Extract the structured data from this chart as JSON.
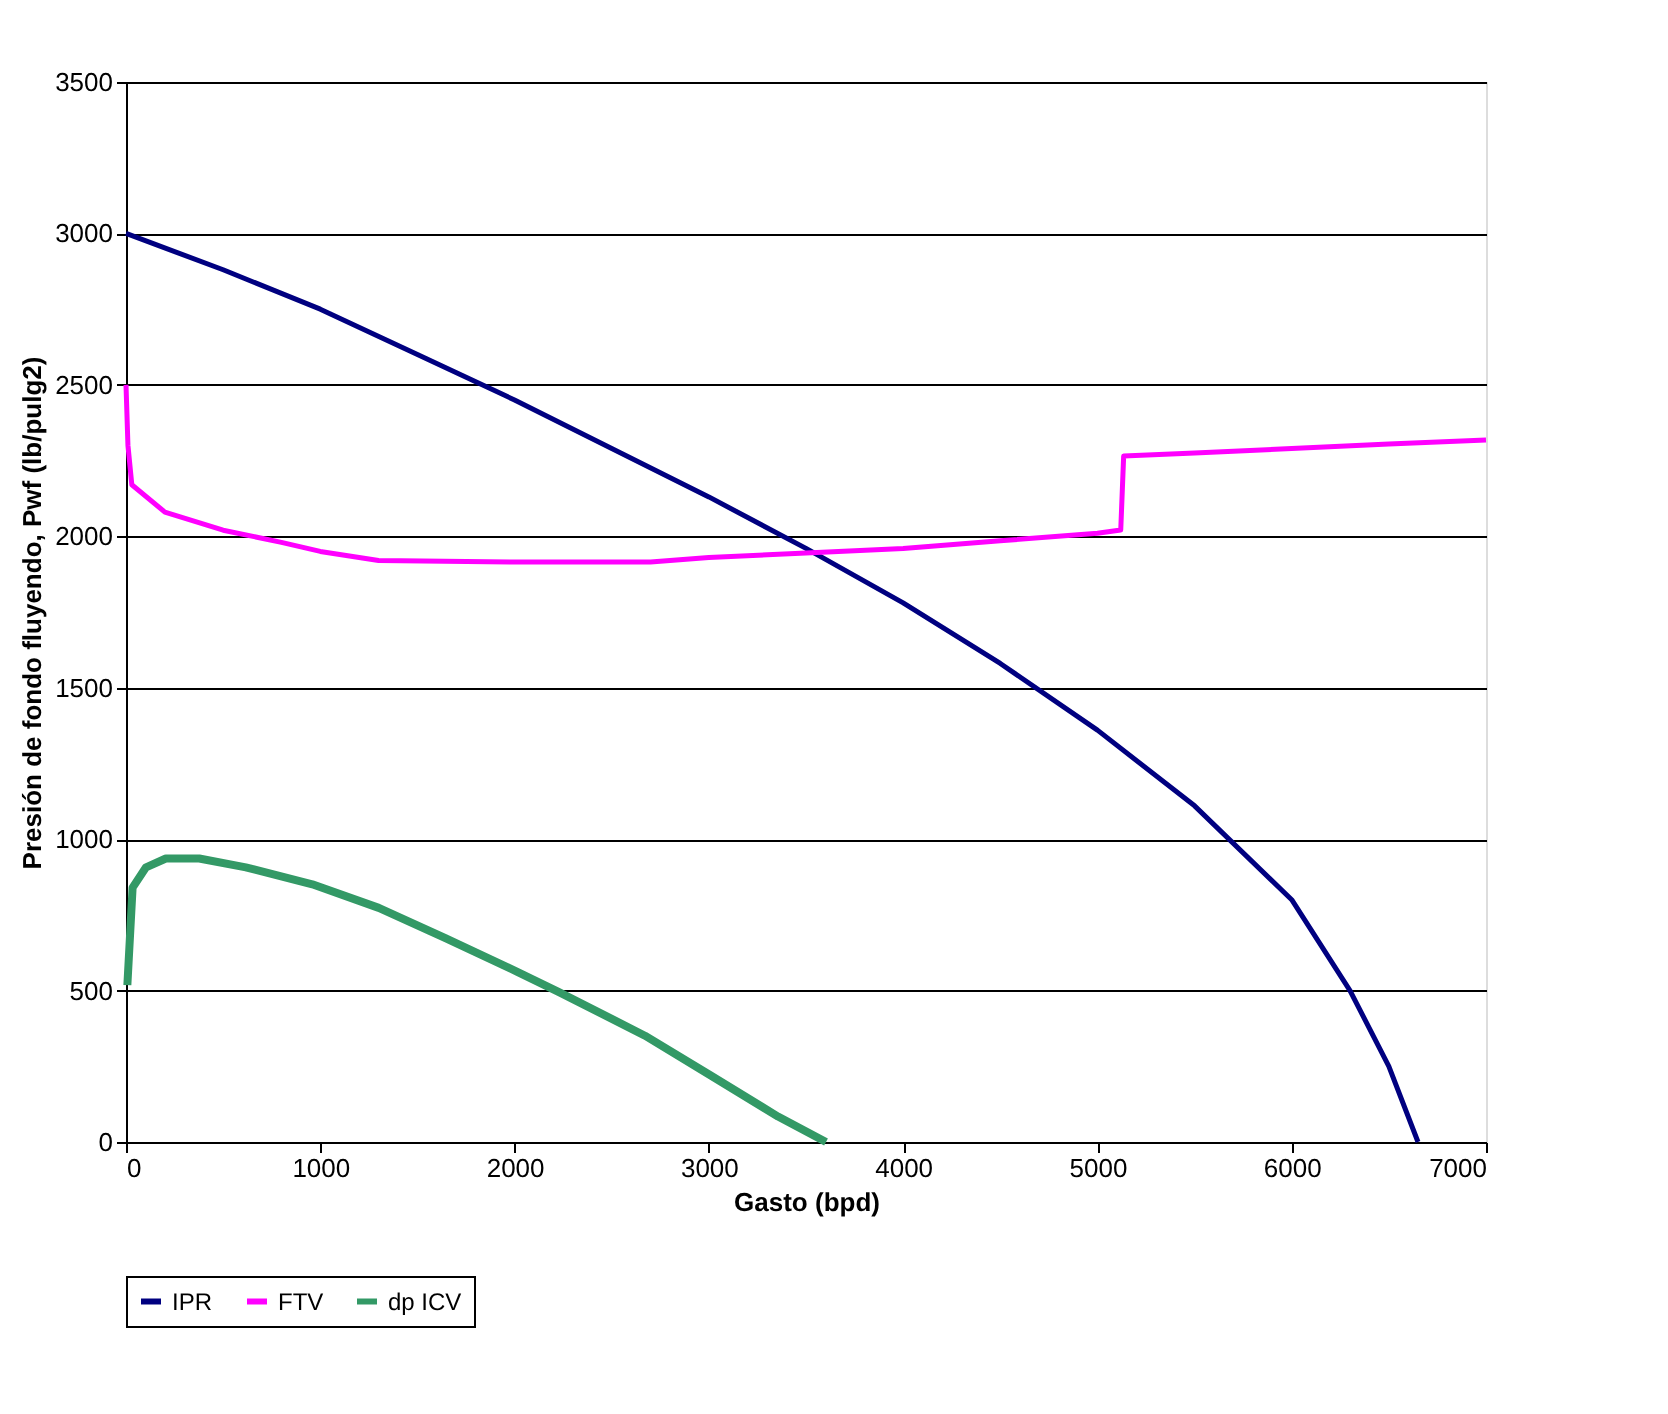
{
  "chart_data": {
    "type": "line",
    "xlabel": "Gasto (bpd)",
    "ylabel": "Presión de fondo fluyendo, Pwf (lb/pulg2)",
    "xlim": [
      0,
      7000
    ],
    "xticks": [
      0,
      1000,
      2000,
      3000,
      4000,
      5000,
      6000,
      7000
    ],
    "ylim": [
      0,
      3500
    ],
    "yticks": [
      0,
      500,
      1000,
      1500,
      2000,
      2500,
      3000,
      3500
    ],
    "grid": "y",
    "legend": "bottom",
    "marker": "none",
    "line_style": "solid",
    "series": [
      {
        "name": "IPR",
        "color": "#000080",
        "x": [
          0,
          500,
          1000,
          1500,
          2000,
          2500,
          3000,
          3500,
          4000,
          4500,
          5000,
          5500,
          6000,
          6300,
          6500,
          6650
        ],
        "values": [
          3000,
          2880,
          2750,
          2600,
          2450,
          2290,
          2130,
          1960,
          1780,
          1580,
          1360,
          1110,
          800,
          500,
          250,
          0
        ]
      },
      {
        "name": "FTV",
        "color": "#ff00ff",
        "x": [
          0,
          10,
          30,
          200,
          500,
          800,
          1000,
          1300,
          2000,
          2700,
          3000,
          3500,
          4000,
          4500,
          5000,
          5120,
          5135,
          5500,
          6000,
          6500,
          7000
        ],
        "values": [
          2500,
          2300,
          2170,
          2080,
          2020,
          1980,
          1950,
          1920,
          1915,
          1915,
          1930,
          1945,
          1960,
          1985,
          2010,
          2021,
          2265,
          2275,
          2290,
          2305,
          2318
        ]
      },
      {
        "name": "dp ICV",
        "color": "#339966",
        "x": [
          7,
          34,
          103,
          205,
          377,
          617,
          959,
          1301,
          1644,
          2014,
          2226,
          2671,
          3014,
          3356,
          3603
        ],
        "values": [
          518,
          840,
          907,
          936,
          936,
          907,
          851,
          773,
          673,
          562,
          496,
          351,
          218,
          84,
          0
        ]
      }
    ]
  }
}
